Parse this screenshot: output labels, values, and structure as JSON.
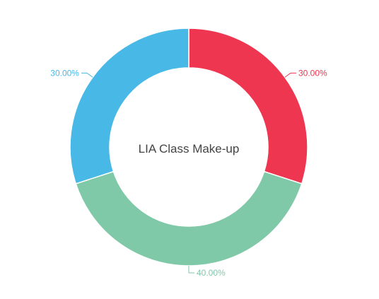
{
  "chart_data": {
    "type": "pie",
    "variant": "donut",
    "center_title": "LIA Class Make-up",
    "slices": [
      {
        "value": 30,
        "label": "30.00%",
        "color": "#ef3650"
      },
      {
        "value": 40,
        "label": "40.00%",
        "color": "#7fc9a8"
      },
      {
        "value": 30,
        "label": "30.00%",
        "color": "#48b8e6"
      }
    ]
  }
}
